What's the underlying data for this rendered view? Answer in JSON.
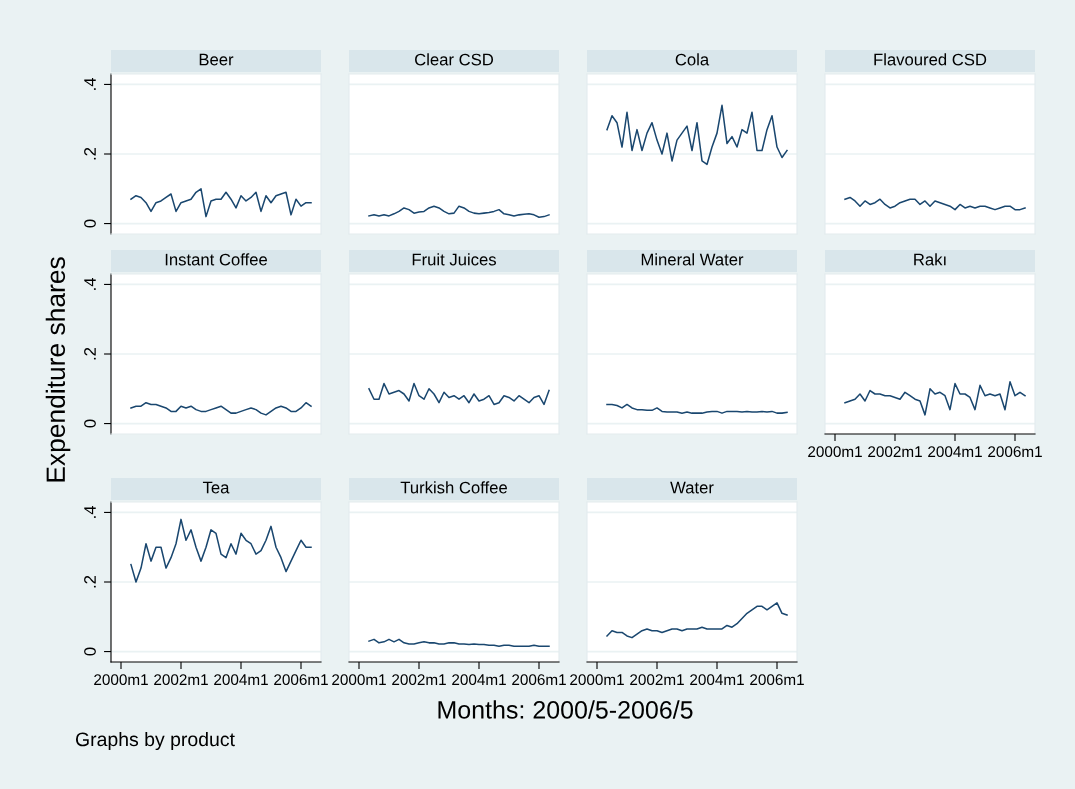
{
  "chart_data": [
    {
      "type": "line",
      "title": "Beer",
      "ylabel": "Expenditure shares",
      "tick_labels": "y",
      "grid": "y",
      "color": "#1a476f",
      "x": [
        "2000-05",
        "2000-07",
        "2000-09",
        "2000-11",
        "2001-01",
        "2001-03",
        "2001-05",
        "2001-07",
        "2001-09",
        "2001-11",
        "2002-01",
        "2002-03",
        "2002-05",
        "2002-07",
        "2002-09",
        "2002-11",
        "2003-01",
        "2003-03",
        "2003-05",
        "2003-07",
        "2003-09",
        "2003-11",
        "2004-01",
        "2004-03",
        "2004-05",
        "2004-07",
        "2004-09",
        "2004-11",
        "2005-01",
        "2005-03",
        "2005-05",
        "2005-07",
        "2005-09",
        "2005-11",
        "2006-01",
        "2006-03",
        "2006-05"
      ],
      "xlim": [
        "1999-09",
        "2006-09"
      ],
      "ylim": [
        -0.03,
        0.43
      ],
      "yticks": [
        {
          "value": 0,
          "label": "0"
        },
        {
          "value": 0.2,
          "label": ".2"
        },
        {
          "value": 0.4,
          "label": ".4"
        }
      ],
      "values": [
        0.07,
        0.08,
        0.075,
        0.06,
        0.035,
        0.06,
        0.065,
        0.075,
        0.085,
        0.035,
        0.06,
        0.065,
        0.07,
        0.09,
        0.1,
        0.02,
        0.065,
        0.07,
        0.07,
        0.09,
        0.07,
        0.045,
        0.08,
        0.065,
        0.075,
        0.09,
        0.035,
        0.08,
        0.06,
        0.08,
        0.085,
        0.09,
        0.025,
        0.07,
        0.05,
        0.06,
        0.06
      ]
    },
    {
      "type": "line",
      "title": "Clear CSD",
      "tick_labels": false,
      "grid": "y",
      "color": "#1a476f",
      "x": [
        "2000-05",
        "2000-07",
        "2000-09",
        "2000-11",
        "2001-01",
        "2001-03",
        "2001-05",
        "2001-07",
        "2001-09",
        "2001-11",
        "2002-01",
        "2002-03",
        "2002-05",
        "2002-07",
        "2002-09",
        "2002-11",
        "2003-01",
        "2003-03",
        "2003-05",
        "2003-07",
        "2003-09",
        "2003-11",
        "2004-01",
        "2004-03",
        "2004-05",
        "2004-07",
        "2004-09",
        "2004-11",
        "2005-01",
        "2005-03",
        "2005-05",
        "2005-07",
        "2005-09",
        "2005-11",
        "2006-01",
        "2006-03",
        "2006-05"
      ],
      "xlim": [
        "1999-09",
        "2006-09"
      ],
      "ylim": [
        -0.03,
        0.43
      ],
      "yticks": [
        {
          "value": 0,
          "label": null
        },
        {
          "value": 0.2,
          "label": null
        },
        {
          "value": 0.4,
          "label": null
        }
      ],
      "values": [
        0.022,
        0.025,
        0.022,
        0.025,
        0.022,
        0.028,
        0.035,
        0.045,
        0.04,
        0.03,
        0.033,
        0.035,
        0.045,
        0.05,
        0.045,
        0.035,
        0.028,
        0.03,
        0.05,
        0.045,
        0.035,
        0.03,
        0.028,
        0.03,
        0.032,
        0.035,
        0.04,
        0.028,
        0.025,
        0.022,
        0.025,
        0.027,
        0.028,
        0.025,
        0.018,
        0.02,
        0.025
      ]
    },
    {
      "type": "line",
      "title": "Cola",
      "tick_labels": false,
      "grid": "y",
      "color": "#1a476f",
      "x": [
        "2000-05",
        "2000-07",
        "2000-09",
        "2000-11",
        "2001-01",
        "2001-03",
        "2001-05",
        "2001-07",
        "2001-09",
        "2001-11",
        "2002-01",
        "2002-03",
        "2002-05",
        "2002-07",
        "2002-09",
        "2002-11",
        "2003-01",
        "2003-03",
        "2003-05",
        "2003-07",
        "2003-09",
        "2003-11",
        "2004-01",
        "2004-03",
        "2004-05",
        "2004-07",
        "2004-09",
        "2004-11",
        "2005-01",
        "2005-03",
        "2005-05",
        "2005-07",
        "2005-09",
        "2005-11",
        "2006-01",
        "2006-03",
        "2006-05"
      ],
      "xlim": [
        "1999-09",
        "2006-09"
      ],
      "ylim": [
        -0.03,
        0.43
      ],
      "yticks": [
        {
          "value": 0,
          "label": null
        },
        {
          "value": 0.2,
          "label": null
        },
        {
          "value": 0.4,
          "label": null
        }
      ],
      "values": [
        0.27,
        0.31,
        0.29,
        0.22,
        0.32,
        0.21,
        0.27,
        0.21,
        0.26,
        0.29,
        0.24,
        0.2,
        0.26,
        0.18,
        0.24,
        0.26,
        0.28,
        0.21,
        0.29,
        0.18,
        0.17,
        0.22,
        0.26,
        0.34,
        0.23,
        0.25,
        0.22,
        0.27,
        0.26,
        0.32,
        0.21,
        0.21,
        0.27,
        0.31,
        0.22,
        0.19,
        0.21
      ]
    },
    {
      "type": "line",
      "title": "Flavoured CSD",
      "tick_labels": false,
      "grid": "y",
      "color": "#1a476f",
      "x": [
        "2000-05",
        "2000-07",
        "2000-09",
        "2000-11",
        "2001-01",
        "2001-03",
        "2001-05",
        "2001-07",
        "2001-09",
        "2001-11",
        "2002-01",
        "2002-03",
        "2002-05",
        "2002-07",
        "2002-09",
        "2002-11",
        "2003-01",
        "2003-03",
        "2003-05",
        "2003-07",
        "2003-09",
        "2003-11",
        "2004-01",
        "2004-03",
        "2004-05",
        "2004-07",
        "2004-09",
        "2004-11",
        "2005-01",
        "2005-03",
        "2005-05",
        "2005-07",
        "2005-09",
        "2005-11",
        "2006-01",
        "2006-03",
        "2006-05"
      ],
      "xlim": [
        "1999-09",
        "2006-09"
      ],
      "ylim": [
        -0.03,
        0.43
      ],
      "yticks": [
        {
          "value": 0,
          "label": null
        },
        {
          "value": 0.2,
          "label": null
        },
        {
          "value": 0.4,
          "label": null
        }
      ],
      "values": [
        0.07,
        0.075,
        0.065,
        0.05,
        0.065,
        0.055,
        0.06,
        0.07,
        0.055,
        0.045,
        0.05,
        0.06,
        0.065,
        0.07,
        0.07,
        0.055,
        0.065,
        0.05,
        0.065,
        0.06,
        0.055,
        0.05,
        0.04,
        0.055,
        0.045,
        0.05,
        0.045,
        0.05,
        0.05,
        0.045,
        0.04,
        0.045,
        0.05,
        0.05,
        0.04,
        0.04,
        0.045
      ]
    },
    {
      "type": "line",
      "title": "Instant Coffee",
      "tick_labels": "y",
      "grid": "y",
      "color": "#1a476f",
      "x": [
        "2000-05",
        "2000-07",
        "2000-09",
        "2000-11",
        "2001-01",
        "2001-03",
        "2001-05",
        "2001-07",
        "2001-09",
        "2001-11",
        "2002-01",
        "2002-03",
        "2002-05",
        "2002-07",
        "2002-09",
        "2002-11",
        "2003-01",
        "2003-03",
        "2003-05",
        "2003-07",
        "2003-09",
        "2003-11",
        "2004-01",
        "2004-03",
        "2004-05",
        "2004-07",
        "2004-09",
        "2004-11",
        "2005-01",
        "2005-03",
        "2005-05",
        "2005-07",
        "2005-09",
        "2005-11",
        "2006-01",
        "2006-03",
        "2006-05"
      ],
      "xlim": [
        "1999-09",
        "2006-09"
      ],
      "ylim": [
        -0.03,
        0.43
      ],
      "yticks": [
        {
          "value": 0,
          "label": "0"
        },
        {
          "value": 0.2,
          "label": ".2"
        },
        {
          "value": 0.4,
          "label": ".4"
        }
      ],
      "values": [
        0.045,
        0.05,
        0.05,
        0.06,
        0.055,
        0.055,
        0.05,
        0.045,
        0.035,
        0.035,
        0.05,
        0.045,
        0.05,
        0.04,
        0.035,
        0.035,
        0.04,
        0.045,
        0.05,
        0.04,
        0.03,
        0.03,
        0.035,
        0.04,
        0.045,
        0.04,
        0.03,
        0.025,
        0.035,
        0.045,
        0.05,
        0.045,
        0.035,
        0.035,
        0.045,
        0.06,
        0.05
      ]
    },
    {
      "type": "line",
      "title": "Fruit Juices",
      "tick_labels": false,
      "grid": "y",
      "color": "#1a476f",
      "x": [
        "2000-05",
        "2000-07",
        "2000-09",
        "2000-11",
        "2001-01",
        "2001-03",
        "2001-05",
        "2001-07",
        "2001-09",
        "2001-11",
        "2002-01",
        "2002-03",
        "2002-05",
        "2002-07",
        "2002-09",
        "2002-11",
        "2003-01",
        "2003-03",
        "2003-05",
        "2003-07",
        "2003-09",
        "2003-11",
        "2004-01",
        "2004-03",
        "2004-05",
        "2004-07",
        "2004-09",
        "2004-11",
        "2005-01",
        "2005-03",
        "2005-05",
        "2005-07",
        "2005-09",
        "2005-11",
        "2006-01",
        "2006-03",
        "2006-05"
      ],
      "xlim": [
        "1999-09",
        "2006-09"
      ],
      "ylim": [
        -0.03,
        0.43
      ],
      "yticks": [
        {
          "value": 0,
          "label": null
        },
        {
          "value": 0.2,
          "label": null
        },
        {
          "value": 0.4,
          "label": null
        }
      ],
      "values": [
        0.1,
        0.07,
        0.07,
        0.115,
        0.085,
        0.09,
        0.095,
        0.085,
        0.065,
        0.115,
        0.08,
        0.07,
        0.1,
        0.085,
        0.06,
        0.09,
        0.075,
        0.08,
        0.07,
        0.08,
        0.06,
        0.085,
        0.065,
        0.07,
        0.08,
        0.055,
        0.06,
        0.08,
        0.075,
        0.065,
        0.08,
        0.07,
        0.06,
        0.075,
        0.08,
        0.055,
        0.095
      ]
    },
    {
      "type": "line",
      "title": "Mineral Water",
      "tick_labels": false,
      "grid": "y",
      "color": "#1a476f",
      "x": [
        "2000-05",
        "2000-07",
        "2000-09",
        "2000-11",
        "2001-01",
        "2001-03",
        "2001-05",
        "2001-07",
        "2001-09",
        "2001-11",
        "2002-01",
        "2002-03",
        "2002-05",
        "2002-07",
        "2002-09",
        "2002-11",
        "2003-01",
        "2003-03",
        "2003-05",
        "2003-07",
        "2003-09",
        "2003-11",
        "2004-01",
        "2004-03",
        "2004-05",
        "2004-07",
        "2004-09",
        "2004-11",
        "2005-01",
        "2005-03",
        "2005-05",
        "2005-07",
        "2005-09",
        "2005-11",
        "2006-01",
        "2006-03",
        "2006-05"
      ],
      "xlim": [
        "1999-09",
        "2006-09"
      ],
      "ylim": [
        -0.03,
        0.43
      ],
      "yticks": [
        {
          "value": 0,
          "label": null
        },
        {
          "value": 0.2,
          "label": null
        },
        {
          "value": 0.4,
          "label": null
        }
      ],
      "values": [
        0.055,
        0.055,
        0.052,
        0.045,
        0.055,
        0.045,
        0.04,
        0.04,
        0.038,
        0.038,
        0.045,
        0.035,
        0.033,
        0.033,
        0.033,
        0.03,
        0.033,
        0.03,
        0.03,
        0.03,
        0.033,
        0.035,
        0.035,
        0.03,
        0.035,
        0.035,
        0.035,
        0.033,
        0.035,
        0.033,
        0.033,
        0.035,
        0.033,
        0.035,
        0.03,
        0.03,
        0.032
      ]
    },
    {
      "type": "line",
      "title": "Rakı",
      "tick_labels": "x",
      "grid": "y",
      "color": "#1a476f",
      "x": [
        "2000-05",
        "2000-07",
        "2000-09",
        "2000-11",
        "2001-01",
        "2001-03",
        "2001-05",
        "2001-07",
        "2001-09",
        "2001-11",
        "2002-01",
        "2002-03",
        "2002-05",
        "2002-07",
        "2002-09",
        "2002-11",
        "2003-01",
        "2003-03",
        "2003-05",
        "2003-07",
        "2003-09",
        "2003-11",
        "2004-01",
        "2004-03",
        "2004-05",
        "2004-07",
        "2004-09",
        "2004-11",
        "2005-01",
        "2005-03",
        "2005-05",
        "2005-07",
        "2005-09",
        "2005-11",
        "2006-01",
        "2006-03",
        "2006-05"
      ],
      "xlim": [
        "1999-09",
        "2006-09"
      ],
      "xticks": [
        {
          "value": "2000-01",
          "label": "2000m1"
        },
        {
          "value": "2002-01",
          "label": "2002m1"
        },
        {
          "value": "2004-01",
          "label": "2004m1"
        },
        {
          "value": "2006-01",
          "label": "2006m1"
        }
      ],
      "ylim": [
        -0.03,
        0.43
      ],
      "yticks": [
        {
          "value": 0,
          "label": null
        },
        {
          "value": 0.2,
          "label": null
        },
        {
          "value": 0.4,
          "label": null
        }
      ],
      "values": [
        0.06,
        0.065,
        0.07,
        0.085,
        0.065,
        0.095,
        0.085,
        0.085,
        0.08,
        0.08,
        0.075,
        0.07,
        0.09,
        0.08,
        0.07,
        0.065,
        0.025,
        0.1,
        0.085,
        0.09,
        0.08,
        0.04,
        0.115,
        0.085,
        0.085,
        0.075,
        0.04,
        0.11,
        0.08,
        0.085,
        0.08,
        0.085,
        0.04,
        0.12,
        0.08,
        0.09,
        0.08
      ]
    },
    {
      "type": "line",
      "title": "Tea",
      "grid": "y",
      "color": "#1a476f",
      "x": [
        "2000-05",
        "2000-07",
        "2000-09",
        "2000-11",
        "2001-01",
        "2001-03",
        "2001-05",
        "2001-07",
        "2001-09",
        "2001-11",
        "2002-01",
        "2002-03",
        "2002-05",
        "2002-07",
        "2002-09",
        "2002-11",
        "2003-01",
        "2003-03",
        "2003-05",
        "2003-07",
        "2003-09",
        "2003-11",
        "2004-01",
        "2004-03",
        "2004-05",
        "2004-07",
        "2004-09",
        "2004-11",
        "2005-01",
        "2005-03",
        "2005-05",
        "2005-07",
        "2005-09",
        "2005-11",
        "2006-01",
        "2006-03",
        "2006-05"
      ],
      "xlim": [
        "1999-09",
        "2006-09"
      ],
      "xticks": [
        {
          "value": "2000-01",
          "label": "2000m1"
        },
        {
          "value": "2002-01",
          "label": "2002m1"
        },
        {
          "value": "2004-01",
          "label": "2004m1"
        },
        {
          "value": "2006-01",
          "label": "2006m1"
        }
      ],
      "ylim": [
        -0.03,
        0.43
      ],
      "yticks": [
        {
          "value": 0,
          "label": "0"
        },
        {
          "value": 0.2,
          "label": ".2"
        },
        {
          "value": 0.4,
          "label": ".4"
        }
      ],
      "values": [
        0.25,
        0.2,
        0.24,
        0.31,
        0.26,
        0.3,
        0.3,
        0.24,
        0.27,
        0.31,
        0.38,
        0.32,
        0.35,
        0.3,
        0.26,
        0.3,
        0.35,
        0.34,
        0.28,
        0.27,
        0.31,
        0.28,
        0.34,
        0.32,
        0.31,
        0.28,
        0.29,
        0.32,
        0.36,
        0.3,
        0.27,
        0.23,
        0.26,
        0.29,
        0.32,
        0.3,
        0.3
      ]
    },
    {
      "type": "line",
      "title": "Turkish Coffee",
      "tick_labels": "x",
      "grid": "y",
      "color": "#1a476f",
      "x": [
        "2000-05",
        "2000-07",
        "2000-09",
        "2000-11",
        "2001-01",
        "2001-03",
        "2001-05",
        "2001-07",
        "2001-09",
        "2001-11",
        "2002-01",
        "2002-03",
        "2002-05",
        "2002-07",
        "2002-09",
        "2002-11",
        "2003-01",
        "2003-03",
        "2003-05",
        "2003-07",
        "2003-09",
        "2003-11",
        "2004-01",
        "2004-03",
        "2004-05",
        "2004-07",
        "2004-09",
        "2004-11",
        "2005-01",
        "2005-03",
        "2005-05",
        "2005-07",
        "2005-09",
        "2005-11",
        "2006-01",
        "2006-03",
        "2006-05"
      ],
      "xlim": [
        "1999-09",
        "2006-09"
      ],
      "xticks": [
        {
          "value": "2000-01",
          "label": "2000m1"
        },
        {
          "value": "2002-01",
          "label": "2002m1"
        },
        {
          "value": "2004-01",
          "label": "2004m1"
        },
        {
          "value": "2006-01",
          "label": "2006m1"
        }
      ],
      "ylim": [
        -0.03,
        0.43
      ],
      "yticks": [
        {
          "value": 0,
          "label": null
        },
        {
          "value": 0.2,
          "label": null
        },
        {
          "value": 0.4,
          "label": null
        }
      ],
      "values": [
        0.03,
        0.035,
        0.025,
        0.028,
        0.035,
        0.028,
        0.035,
        0.025,
        0.022,
        0.022,
        0.025,
        0.028,
        0.025,
        0.025,
        0.022,
        0.022,
        0.025,
        0.025,
        0.022,
        0.022,
        0.02,
        0.022,
        0.02,
        0.02,
        0.018,
        0.018,
        0.015,
        0.018,
        0.018,
        0.015,
        0.015,
        0.015,
        0.015,
        0.018,
        0.015,
        0.015,
        0.015
      ]
    },
    {
      "type": "line",
      "title": "Water",
      "xlabel": "Months: 2000/5-2006/5",
      "annotations": [
        "Graphs by product"
      ],
      "tick_labels": "x",
      "grid": "y",
      "color": "#1a476f",
      "x": [
        "2000-05",
        "2000-07",
        "2000-09",
        "2000-11",
        "2001-01",
        "2001-03",
        "2001-05",
        "2001-07",
        "2001-09",
        "2001-11",
        "2002-01",
        "2002-03",
        "2002-05",
        "2002-07",
        "2002-09",
        "2002-11",
        "2003-01",
        "2003-03",
        "2003-05",
        "2003-07",
        "2003-09",
        "2003-11",
        "2004-01",
        "2004-03",
        "2004-05",
        "2004-07",
        "2004-09",
        "2004-11",
        "2005-01",
        "2005-03",
        "2005-05",
        "2005-07",
        "2005-09",
        "2005-11",
        "2006-01",
        "2006-03",
        "2006-05"
      ],
      "xlim": [
        "1999-09",
        "2006-09"
      ],
      "xticks": [
        {
          "value": "2000-01",
          "label": "2000m1"
        },
        {
          "value": "2002-01",
          "label": "2002m1"
        },
        {
          "value": "2004-01",
          "label": "2004m1"
        },
        {
          "value": "2006-01",
          "label": "2006m1"
        }
      ],
      "ylim": [
        -0.03,
        0.43
      ],
      "yticks": [
        {
          "value": 0,
          "label": null
        },
        {
          "value": 0.2,
          "label": null
        },
        {
          "value": 0.4,
          "label": null
        }
      ],
      "values": [
        0.045,
        0.06,
        0.055,
        0.055,
        0.045,
        0.04,
        0.05,
        0.06,
        0.065,
        0.06,
        0.06,
        0.055,
        0.06,
        0.065,
        0.065,
        0.06,
        0.065,
        0.065,
        0.065,
        0.07,
        0.065,
        0.065,
        0.065,
        0.065,
        0.075,
        0.07,
        0.08,
        0.095,
        0.11,
        0.12,
        0.13,
        0.13,
        0.12,
        0.13,
        0.14,
        0.11,
        0.105
      ]
    }
  ]
}
